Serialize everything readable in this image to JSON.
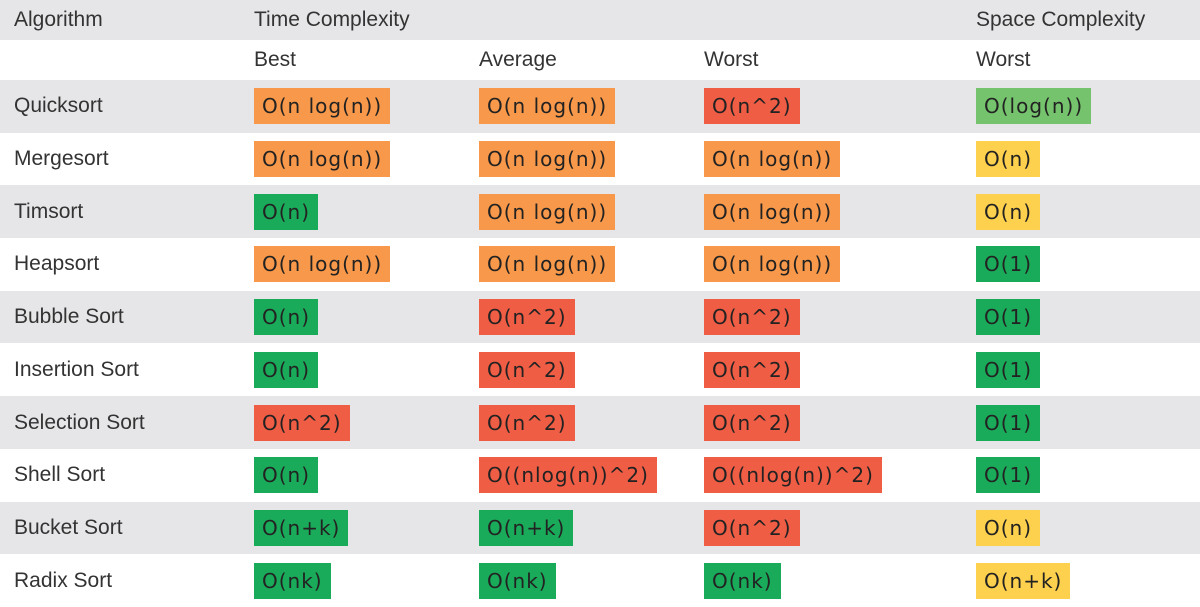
{
  "header": {
    "algorithm": "Algorithm",
    "time": "Time Complexity",
    "space": "Space Complexity",
    "best": "Best",
    "average": "Average",
    "worst": "Worst",
    "space_worst": "Worst"
  },
  "rows": [
    {
      "name": "Quicksort",
      "cells": [
        {
          "text": "O(n log(n))",
          "color": "#f7984a"
        },
        {
          "text": "O(n log(n))",
          "color": "#f7984a"
        },
        {
          "text": "O(n^2)",
          "color": "#ef5d45"
        },
        {
          "text": "O(log(n))",
          "color": "#75c46d"
        }
      ]
    },
    {
      "name": "Mergesort",
      "cells": [
        {
          "text": "O(n log(n))",
          "color": "#f7984a"
        },
        {
          "text": "O(n log(n))",
          "color": "#f7984a"
        },
        {
          "text": "O(n log(n))",
          "color": "#f7984a"
        },
        {
          "text": "O(n)",
          "color": "#fdd04d"
        }
      ]
    },
    {
      "name": "Timsort",
      "cells": [
        {
          "text": "O(n)",
          "color": "#1aab5a"
        },
        {
          "text": "O(n log(n))",
          "color": "#f7984a"
        },
        {
          "text": "O(n log(n))",
          "color": "#f7984a"
        },
        {
          "text": "O(n)",
          "color": "#fdd04d"
        }
      ]
    },
    {
      "name": "Heapsort",
      "cells": [
        {
          "text": "O(n log(n))",
          "color": "#f7984a"
        },
        {
          "text": "O(n log(n))",
          "color": "#f7984a"
        },
        {
          "text": "O(n log(n))",
          "color": "#f7984a"
        },
        {
          "text": "O(1)",
          "color": "#1aab5a"
        }
      ]
    },
    {
      "name": "Bubble Sort",
      "cells": [
        {
          "text": "O(n)",
          "color": "#1aab5a"
        },
        {
          "text": "O(n^2)",
          "color": "#ef5d45"
        },
        {
          "text": "O(n^2)",
          "color": "#ef5d45"
        },
        {
          "text": "O(1)",
          "color": "#1aab5a"
        }
      ]
    },
    {
      "name": "Insertion Sort",
      "cells": [
        {
          "text": "O(n)",
          "color": "#1aab5a"
        },
        {
          "text": "O(n^2)",
          "color": "#ef5d45"
        },
        {
          "text": "O(n^2)",
          "color": "#ef5d45"
        },
        {
          "text": "O(1)",
          "color": "#1aab5a"
        }
      ]
    },
    {
      "name": "Selection Sort",
      "cells": [
        {
          "text": "O(n^2)",
          "color": "#ef5d45"
        },
        {
          "text": "O(n^2)",
          "color": "#ef5d45"
        },
        {
          "text": "O(n^2)",
          "color": "#ef5d45"
        },
        {
          "text": "O(1)",
          "color": "#1aab5a"
        }
      ]
    },
    {
      "name": "Shell Sort",
      "cells": [
        {
          "text": "O(n)",
          "color": "#1aab5a"
        },
        {
          "text": "O((nlog(n))^2)",
          "color": "#ef5d45"
        },
        {
          "text": "O((nlog(n))^2)",
          "color": "#ef5d45"
        },
        {
          "text": "O(1)",
          "color": "#1aab5a"
        }
      ]
    },
    {
      "name": "Bucket Sort",
      "cells": [
        {
          "text": "O(n+k)",
          "color": "#1aab5a"
        },
        {
          "text": "O(n+k)",
          "color": "#1aab5a"
        },
        {
          "text": "O(n^2)",
          "color": "#ef5d45"
        },
        {
          "text": "O(n)",
          "color": "#fdd04d"
        }
      ]
    },
    {
      "name": "Radix Sort",
      "cells": [
        {
          "text": "O(nk)",
          "color": "#1aab5a"
        },
        {
          "text": "O(nk)",
          "color": "#1aab5a"
        },
        {
          "text": "O(nk)",
          "color": "#1aab5a"
        },
        {
          "text": "O(n+k)",
          "color": "#fdd04d"
        }
      ]
    }
  ]
}
